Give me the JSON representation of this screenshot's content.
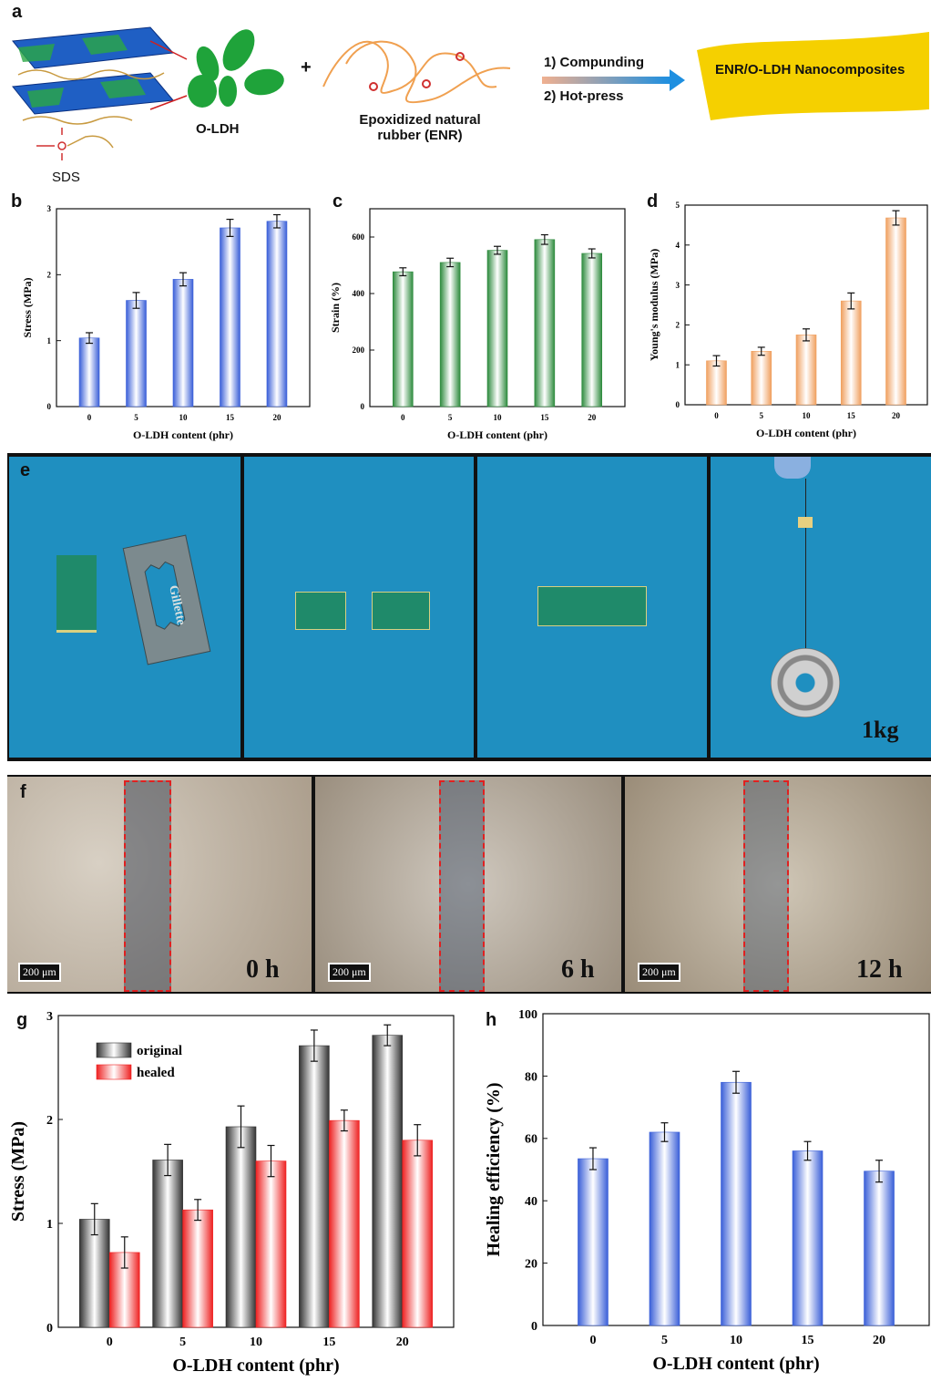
{
  "panels": {
    "a": "a",
    "b": "b",
    "c": "c",
    "d": "d",
    "e": "e",
    "f": "f",
    "g": "g",
    "h": "h"
  },
  "scheme": {
    "olDH_label": "O-LDH",
    "sds_label": "SDS",
    "plus": "+",
    "enr_label_line1": "Epoxidized natural",
    "enr_label_line2": "rubber (ENR)",
    "step1": "1) Compunding",
    "step2": "2) Hot-press",
    "product": "ENR/O-LDH Nanocomposites",
    "colors": {
      "ldh_blue": "#1f5fc4",
      "ldh_green": "#2aa845",
      "leaf_green": "#1fa33a",
      "chain_orange": "#f0a050",
      "product_yellow": "#f5d000",
      "arrow_blue": "#1e8fe0"
    }
  },
  "photos_e": {
    "blade_text": "Gillette",
    "weight_label": "1kg",
    "background": "#1f8fc0"
  },
  "photos_f": {
    "scale_bar": "200 μm",
    "times": [
      "0 h",
      "6 h",
      "12 h"
    ]
  },
  "chart_data": [
    {
      "id": "b",
      "type": "bar",
      "categories": [
        "0",
        "5",
        "10",
        "15",
        "20"
      ],
      "values": [
        1.04,
        1.61,
        1.93,
        2.71,
        2.81
      ],
      "errors": [
        0.08,
        0.12,
        0.1,
        0.13,
        0.1
      ],
      "xlabel": "O-LDH content (phr)",
      "ylabel": "Stress (MPa)",
      "ylim": [
        0,
        3
      ],
      "yticks": [
        "0",
        "1",
        "2",
        "3"
      ],
      "color": "#3a5fd8"
    },
    {
      "id": "c",
      "type": "bar",
      "categories": [
        "0",
        "5",
        "10",
        "15",
        "20"
      ],
      "values": [
        477,
        510,
        553,
        591,
        542
      ],
      "errors": [
        14,
        15,
        14,
        17,
        16
      ],
      "xlabel": "O-LDH content (phr)",
      "ylabel": "Strain (%)",
      "ylim": [
        0,
        700
      ],
      "yticks": [
        "0",
        "200",
        "400",
        "600"
      ],
      "ytick_values": [
        0,
        200,
        400,
        600
      ],
      "color": "#2e8b3e"
    },
    {
      "id": "d",
      "type": "bar",
      "categories": [
        "0",
        "5",
        "10",
        "15",
        "20"
      ],
      "values": [
        1.1,
        1.34,
        1.75,
        2.6,
        4.68
      ],
      "errors": [
        0.13,
        0.1,
        0.15,
        0.2,
        0.18
      ],
      "xlabel": "O-LDH content (phr)",
      "ylabel": "Young's modulus (MPa)",
      "ylim": [
        0,
        5
      ],
      "yticks": [
        "0",
        "1",
        "2",
        "3",
        "4",
        "5"
      ],
      "color": "#f0a060"
    },
    {
      "id": "g",
      "type": "bar",
      "categories": [
        "0",
        "5",
        "10",
        "15",
        "20"
      ],
      "series": [
        {
          "name": "original",
          "values": [
            1.04,
            1.61,
            1.93,
            2.71,
            2.81
          ],
          "errors": [
            0.15,
            0.15,
            0.2,
            0.15,
            0.1
          ],
          "color": "#333333"
        },
        {
          "name": "healed",
          "values": [
            0.72,
            1.13,
            1.6,
            1.99,
            1.8
          ],
          "errors": [
            0.15,
            0.1,
            0.15,
            0.1,
            0.15
          ],
          "color": "#ee2222"
        }
      ],
      "xlabel": "O-LDH content (phr)",
      "ylabel": "Stress (MPa)",
      "ylim": [
        0,
        3
      ],
      "yticks": [
        "0",
        "1",
        "2",
        "3"
      ],
      "legend": "top-left"
    },
    {
      "id": "h",
      "type": "bar",
      "categories": [
        "0",
        "5",
        "10",
        "15",
        "20"
      ],
      "values": [
        53.5,
        62,
        78,
        56,
        49.5
      ],
      "errors": [
        3.5,
        3,
        3.5,
        3,
        3.5
      ],
      "xlabel": "O-LDH content (phr)",
      "ylabel": "Healing efficiency (%)",
      "ylim": [
        0,
        100
      ],
      "yticks": [
        "0",
        "20",
        "40",
        "60",
        "80",
        "100"
      ],
      "ytick_values": [
        0,
        20,
        40,
        60,
        80,
        100
      ],
      "color": "#3a5fd8"
    }
  ]
}
